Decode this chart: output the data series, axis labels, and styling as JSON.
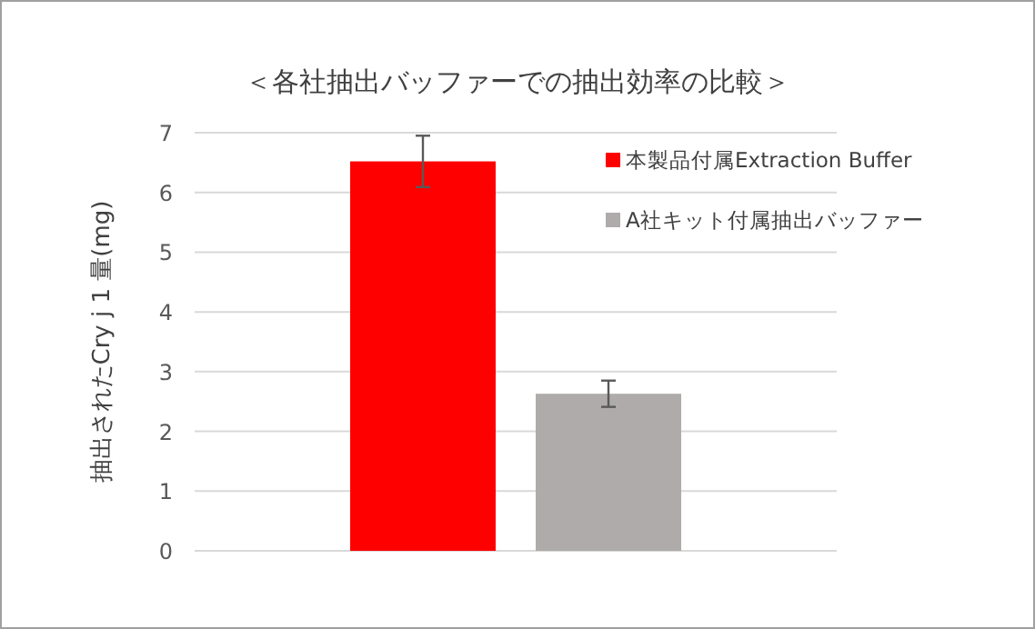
{
  "chart_data": {
    "type": "bar",
    "title": "＜各社抽出バッファーでの抽出効率の比較＞",
    "ylabel": "抽出されたCry j 1 量(mg)",
    "categories": [
      null
    ],
    "series": [
      {
        "name": "本製品付属Extraction Buffer",
        "color": "#ff0000",
        "values": [
          6.52
        ],
        "errors": [
          0.43
        ]
      },
      {
        "name": "A社キット付属抽出バッファー",
        "color": "#afabab",
        "values": [
          2.63
        ],
        "errors": [
          0.22
        ]
      }
    ],
    "ylim": [
      0,
      7
    ],
    "yticks": [
      0,
      1,
      2,
      3,
      4,
      5,
      6,
      7
    ],
    "grid": "y",
    "legend": "top right"
  }
}
